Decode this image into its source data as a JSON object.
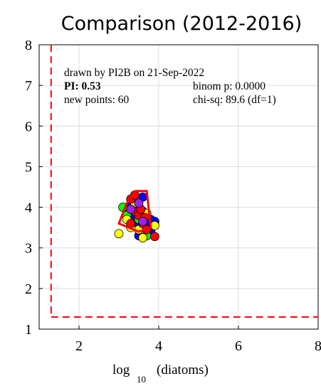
{
  "chart_data": {
    "type": "scatter",
    "title": "Comparison (2012-2016)",
    "xlabel_main": "log",
    "xlabel_sub": "10",
    "xlabel_rest": "(diatoms)",
    "xlim": [
      1,
      8
    ],
    "ylim": [
      1,
      8
    ],
    "xticks": [
      "2",
      "4",
      "6",
      "8"
    ],
    "yticks": [
      "1",
      "2",
      "3",
      "4",
      "5",
      "6",
      "7",
      "8"
    ],
    "grid": true,
    "annotations": {
      "drawn_by": "drawn by PI2B on 21-Sep-2022",
      "pi": "PI: 0.53",
      "new_points": "new points: 60",
      "binom": "binom p: 0.0000",
      "chisq": "chi-sq: 89.6 (df=1)"
    },
    "threshold_lines": {
      "x": 1.3,
      "y": 1.3,
      "color": "#ff0000"
    },
    "envelope": {
      "color": "#ff0000",
      "points": [
        [
          3.4,
          4.4
        ],
        [
          3.7,
          4.4
        ],
        [
          3.8,
          3.5
        ],
        [
          3.5,
          3.4
        ],
        [
          3.0,
          3.6
        ],
        [
          3.2,
          4.1
        ],
        [
          3.4,
          4.4
        ]
      ]
    },
    "series": [
      {
        "color": "#0000ff",
        "points": [
          [
            3.3,
            4.1
          ],
          [
            3.5,
            4.0
          ],
          [
            3.6,
            4.25
          ],
          [
            3.7,
            3.8
          ],
          [
            3.8,
            3.7
          ],
          [
            3.9,
            3.65
          ],
          [
            3.6,
            3.5
          ],
          [
            3.4,
            3.8
          ],
          [
            3.2,
            3.9
          ],
          [
            3.5,
            3.3
          ],
          [
            3.7,
            3.6
          ],
          [
            3.3,
            4.2
          ],
          [
            3.8,
            3.4
          ],
          [
            3.6,
            3.9
          ],
          [
            3.4,
            3.6
          ]
        ]
      },
      {
        "color": "#00ff00",
        "points": [
          [
            3.1,
            4.0
          ],
          [
            3.2,
            3.8
          ],
          [
            3.5,
            3.7
          ],
          [
            3.7,
            3.3
          ],
          [
            3.4,
            3.95
          ],
          [
            3.3,
            3.55
          ],
          [
            3.6,
            3.75
          ]
        ]
      },
      {
        "color": "#ffff00",
        "points": [
          [
            3.0,
            3.35
          ],
          [
            3.3,
            3.5
          ],
          [
            3.5,
            3.45
          ],
          [
            3.6,
            3.25
          ],
          [
            3.9,
            3.55
          ],
          [
            3.2,
            3.7
          ],
          [
            3.4,
            4.05
          ],
          [
            3.7,
            3.85
          ]
        ]
      },
      {
        "color": "#ff0000",
        "points": [
          [
            3.3,
            4.2
          ],
          [
            3.4,
            3.9
          ],
          [
            3.5,
            3.8
          ],
          [
            3.6,
            3.6
          ],
          [
            3.7,
            3.45
          ],
          [
            3.9,
            3.28
          ],
          [
            3.3,
            3.6
          ],
          [
            3.4,
            4.3
          ],
          [
            3.55,
            3.95
          ],
          [
            3.65,
            3.75
          ]
        ]
      },
      {
        "color": "#a020f0",
        "points": [
          [
            3.5,
            4.1
          ],
          [
            3.3,
            3.95
          ],
          [
            3.6,
            3.65
          ]
        ]
      }
    ]
  }
}
